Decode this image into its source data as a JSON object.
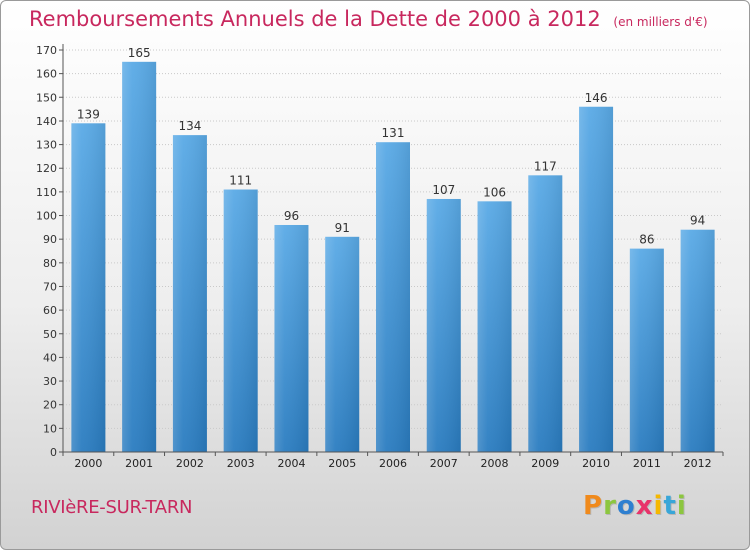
{
  "chart_data": {
    "type": "bar",
    "title": "Remboursements Annuels de la Dette de 2000 à 2012",
    "unit": "(en milliers d'€)",
    "categories": [
      "2000",
      "2001",
      "2002",
      "2003",
      "2004",
      "2005",
      "2006",
      "2007",
      "2008",
      "2009",
      "2010",
      "2011",
      "2012"
    ],
    "values": [
      139,
      165,
      134,
      111,
      96,
      91,
      131,
      107,
      106,
      117,
      146,
      86,
      94
    ],
    "ylim": [
      0,
      170
    ],
    "yticks": [
      0,
      10,
      20,
      30,
      40,
      50,
      60,
      70,
      80,
      90,
      100,
      110,
      120,
      130,
      140,
      150,
      160,
      170
    ],
    "grid": true,
    "bar_color_top": "#5aaae6",
    "bar_color_bottom": "#2a7cc0"
  },
  "commune": "RIVIèRE-SUR-TARN",
  "logo": {
    "text": "Proxiti",
    "letters": [
      {
        "ch": "P",
        "color": "#f08a1c"
      },
      {
        "ch": "r",
        "color": "#8cc63f"
      },
      {
        "ch": "o",
        "color": "#2e7fd0"
      },
      {
        "ch": "x",
        "color": "#e8336a"
      },
      {
        "ch": "i",
        "color": "#f5b800"
      },
      {
        "ch": "t",
        "color": "#38a6d8"
      },
      {
        "ch": "i",
        "color": "#8cc63f"
      }
    ]
  }
}
